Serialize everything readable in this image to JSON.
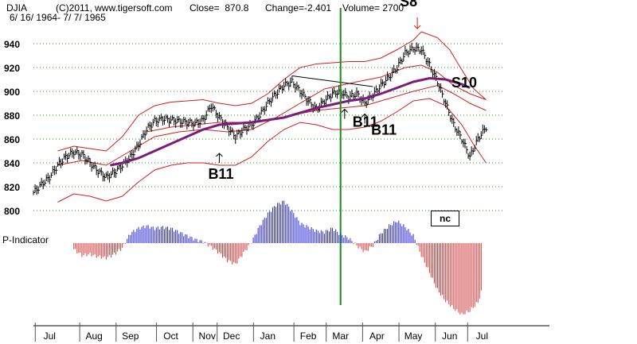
{
  "header": {
    "symbol": "DJIA",
    "copyright": "(C)2011, www.tigersoft.com",
    "close": "Close=  870.8",
    "change": "Change=-2.401",
    "volume": "Volume= 2700",
    "date_range": "6/ 16/ 1964- 7/ 7/ 1965"
  },
  "indicator_label": "P-Indicator",
  "nc_label": "nc",
  "signals": [
    {
      "text": "B11",
      "week": 23,
      "arrow_value": 848,
      "arrow": "up"
    },
    {
      "text": "B11",
      "week": 38.5,
      "arrow_value": 885,
      "arrow": "up"
    },
    {
      "text": "B11",
      "week": 41,
      "arrow_value": 881,
      "arrow": "up"
    },
    {
      "text": "S8",
      "week": 47.5,
      "arrow_value": 955,
      "arrow": "down"
    },
    {
      "text": "S10",
      "week": 53.5,
      "arrow_value": null,
      "arrow": "none"
    }
  ],
  "chart_data": {
    "type": "line",
    "title": "DJIA daily high-low bars with 65-day moving average and price bands",
    "x_unit": "weeks since 6/16/1964",
    "y_range": [
      800,
      950
    ],
    "y_ticks": [
      800,
      820,
      840,
      860,
      880,
      900,
      920,
      940
    ],
    "month_labels": [
      "Jul",
      "Aug",
      "Sep",
      "Oct",
      "Nov",
      "Dec",
      "Jan",
      "Feb",
      "Mar",
      "Apr",
      "May",
      "Jun",
      "Jul"
    ],
    "month_weeks": [
      2,
      7.5,
      12,
      17,
      21.5,
      24.5,
      29,
      34,
      38,
      42.5,
      47,
      51.5,
      55.5
    ],
    "vertical_marker_week": 38,
    "price_close": [
      [
        0,
        815
      ],
      [
        1,
        822
      ],
      [
        2,
        828
      ],
      [
        3,
        838
      ],
      [
        4,
        845
      ],
      [
        5,
        849
      ],
      [
        6,
        847
      ],
      [
        7,
        840
      ],
      [
        8,
        833
      ],
      [
        9,
        828
      ],
      [
        10,
        832
      ],
      [
        11,
        838
      ],
      [
        12,
        845
      ],
      [
        13,
        855
      ],
      [
        14,
        868
      ],
      [
        15,
        875
      ],
      [
        16,
        877
      ],
      [
        17,
        876
      ],
      [
        18,
        875
      ],
      [
        19,
        874
      ],
      [
        20,
        873
      ],
      [
        21,
        876
      ],
      [
        22,
        888
      ],
      [
        23,
        878
      ],
      [
        24,
        870
      ],
      [
        25,
        862
      ],
      [
        26,
        868
      ],
      [
        27,
        872
      ],
      [
        28,
        880
      ],
      [
        29,
        890
      ],
      [
        30,
        898
      ],
      [
        31,
        905
      ],
      [
        32,
        908
      ],
      [
        33,
        900
      ],
      [
        34,
        892
      ],
      [
        35,
        885
      ],
      [
        36,
        892
      ],
      [
        37,
        898
      ],
      [
        38,
        900
      ],
      [
        39,
        895
      ],
      [
        40,
        898
      ],
      [
        41,
        890
      ],
      [
        42,
        897
      ],
      [
        43,
        905
      ],
      [
        44,
        912
      ],
      [
        45,
        920
      ],
      [
        46,
        932
      ],
      [
        47,
        936
      ],
      [
        48,
        935
      ],
      [
        49,
        922
      ],
      [
        50,
        908
      ],
      [
        51,
        890
      ],
      [
        52,
        872
      ],
      [
        53,
        860
      ],
      [
        54,
        845
      ],
      [
        55,
        860
      ],
      [
        56,
        870
      ]
    ],
    "moving_average": [
      [
        9.5,
        838
      ],
      [
        11,
        840
      ],
      [
        13,
        844
      ],
      [
        15,
        850
      ],
      [
        17,
        856
      ],
      [
        19,
        862
      ],
      [
        21,
        868
      ],
      [
        23,
        872
      ],
      [
        25,
        873
      ],
      [
        27,
        874
      ],
      [
        29,
        876
      ],
      [
        31,
        878
      ],
      [
        33,
        882
      ],
      [
        35,
        886
      ],
      [
        37,
        889
      ],
      [
        39,
        892
      ],
      [
        41,
        894
      ],
      [
        43,
        898
      ],
      [
        45,
        903
      ],
      [
        47,
        908
      ],
      [
        49,
        911
      ],
      [
        51,
        910
      ],
      [
        53,
        906
      ],
      [
        54,
        903
      ]
    ],
    "upper_band": [
      [
        3,
        850
      ],
      [
        5,
        854
      ],
      [
        7,
        852
      ],
      [
        9,
        850
      ],
      [
        11,
        862
      ],
      [
        13,
        880
      ],
      [
        15,
        888
      ],
      [
        17,
        891
      ],
      [
        19,
        892
      ],
      [
        21,
        893
      ],
      [
        23,
        890
      ],
      [
        25,
        888
      ],
      [
        27,
        890
      ],
      [
        29,
        898
      ],
      [
        31,
        910
      ],
      [
        33,
        920
      ],
      [
        35,
        923
      ],
      [
        37,
        924
      ],
      [
        39,
        925
      ],
      [
        41,
        925
      ],
      [
        43,
        928
      ],
      [
        45,
        935
      ],
      [
        47,
        943
      ],
      [
        48,
        950
      ],
      [
        50,
        945
      ],
      [
        51.5,
        935
      ],
      [
        53,
        918
      ],
      [
        54.5,
        902
      ],
      [
        56,
        893
      ]
    ],
    "lower_band": [
      [
        3,
        807
      ],
      [
        5,
        814
      ],
      [
        7,
        812
      ],
      [
        9,
        808
      ],
      [
        11,
        812
      ],
      [
        13,
        824
      ],
      [
        15,
        834
      ],
      [
        17,
        838
      ],
      [
        19,
        840
      ],
      [
        21,
        840
      ],
      [
        23,
        838
      ],
      [
        25,
        838
      ],
      [
        27,
        845
      ],
      [
        29,
        858
      ],
      [
        31,
        868
      ],
      [
        33,
        874
      ],
      [
        35,
        872
      ],
      [
        37,
        868
      ],
      [
        39,
        868
      ],
      [
        41,
        870
      ],
      [
        43,
        875
      ],
      [
        45,
        883
      ],
      [
        47,
        892
      ],
      [
        49,
        894
      ],
      [
        51,
        888
      ],
      [
        53,
        872
      ],
      [
        54.5,
        855
      ],
      [
        56,
        840
      ]
    ],
    "envelope_upper": [
      [
        3,
        838
      ],
      [
        6,
        842
      ],
      [
        9,
        838
      ],
      [
        12,
        850
      ],
      [
        15,
        862
      ],
      [
        18,
        866
      ],
      [
        21,
        868
      ],
      [
        24,
        866
      ],
      [
        27,
        868
      ],
      [
        30,
        878
      ],
      [
        33,
        890
      ],
      [
        36,
        902
      ],
      [
        38,
        905
      ],
      [
        40,
        908
      ],
      [
        43,
        912
      ],
      [
        46,
        920
      ],
      [
        48,
        922
      ],
      [
        50,
        916
      ],
      [
        52,
        905
      ],
      [
        54,
        898
      ],
      [
        56,
        893
      ]
    ],
    "envelope_lower": [
      [
        14,
        866
      ],
      [
        17,
        870
      ],
      [
        20,
        872
      ],
      [
        23,
        874
      ],
      [
        26,
        874
      ],
      [
        29,
        876
      ],
      [
        32,
        880
      ],
      [
        35,
        884
      ],
      [
        38,
        886
      ],
      [
        41,
        888
      ],
      [
        44,
        894
      ],
      [
        47,
        900
      ],
      [
        50,
        905
      ],
      [
        52,
        898
      ],
      [
        54,
        890
      ],
      [
        56,
        884
      ]
    ],
    "channel_line": {
      "from": [
        32,
        913
      ],
      "to": [
        42,
        904
      ]
    },
    "p_indicator": {
      "zero_line": "baseline",
      "values": [
        [
          5,
          -5
        ],
        [
          6,
          -10
        ],
        [
          7,
          -9
        ],
        [
          8,
          -11
        ],
        [
          9,
          -12
        ],
        [
          10,
          -9
        ],
        [
          11,
          -4
        ],
        [
          12,
          8
        ],
        [
          13,
          12
        ],
        [
          14,
          14
        ],
        [
          15,
          12
        ],
        [
          16,
          13
        ],
        [
          17,
          12
        ],
        [
          18,
          9
        ],
        [
          19,
          6
        ],
        [
          20,
          3
        ],
        [
          21,
          1
        ],
        [
          22,
          -3
        ],
        [
          23,
          -8
        ],
        [
          24,
          -14
        ],
        [
          25,
          -17
        ],
        [
          26,
          -8
        ],
        [
          27,
          1
        ],
        [
          28,
          14
        ],
        [
          29,
          24
        ],
        [
          30,
          31
        ],
        [
          31,
          34
        ],
        [
          32,
          26
        ],
        [
          33,
          16
        ],
        [
          34,
          13
        ],
        [
          35,
          10
        ],
        [
          36,
          9
        ],
        [
          37,
          12
        ],
        [
          38,
          7
        ],
        [
          39,
          4
        ],
        [
          40,
          -2
        ],
        [
          41,
          -7
        ],
        [
          42,
          -2
        ],
        [
          43,
          8
        ],
        [
          44,
          14
        ],
        [
          45,
          18
        ],
        [
          46,
          13
        ],
        [
          47,
          6
        ],
        [
          48,
          -10
        ],
        [
          49,
          -24
        ],
        [
          50,
          -38
        ],
        [
          51,
          -47
        ],
        [
          52,
          -53
        ],
        [
          53,
          -58
        ],
        [
          54,
          -55
        ],
        [
          55,
          -48
        ],
        [
          55.5,
          -38
        ]
      ]
    }
  }
}
